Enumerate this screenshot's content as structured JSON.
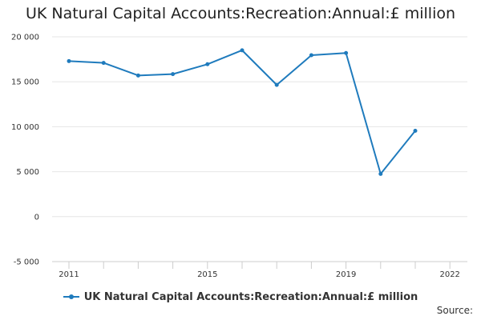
{
  "chart_data": {
    "type": "line",
    "title": "UK Natural Capital Accounts:Recreation:Annual:£ million",
    "xlabel": "",
    "ylabel": "",
    "x": [
      2011,
      2012,
      2013,
      2014,
      2015,
      2016,
      2017,
      2018,
      2019,
      2020,
      2021
    ],
    "xlim": [
      2011,
      2022
    ],
    "xticks": [
      "2011",
      "2015",
      "2019",
      "2022"
    ],
    "xtick_values": [
      2011,
      2015,
      2019,
      2022
    ],
    "ylim": [
      -5000,
      20000
    ],
    "yticks": [
      20000,
      15000,
      10000,
      5000,
      0,
      -5000
    ],
    "ytick_labels": [
      "20 000",
      "15 000",
      "10 000",
      "5 000",
      "0",
      "-5 000"
    ],
    "grid": true,
    "series": [
      {
        "name": "UK Natural Capital Accounts:Recreation:Annual:£ million",
        "color": "#1f7bbd",
        "values": [
          17300,
          17100,
          15700,
          15850,
          16950,
          18500,
          14650,
          17950,
          18200,
          4750,
          9550
        ]
      }
    ],
    "legend_position": "bottom-center"
  },
  "source_label": "Source:"
}
